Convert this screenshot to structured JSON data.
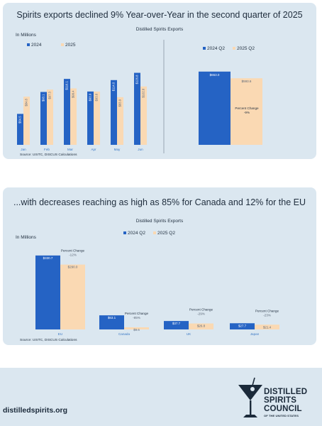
{
  "top": {
    "headline": "Spirits exports declined 9% Year-over-Year in the second quarter of 2025",
    "source": "Source: USITC, DISCUS Calculations"
  },
  "bottom": {
    "headline": "...with decreases reaching as high as 85% for Canada and 12% for the EU",
    "source": "Source: USITC, DISCUS Calculations"
  },
  "footer": {
    "url": "distilledspirits.org",
    "logo_lines": [
      "DISTILLED",
      "SPIRITS",
      "COUNCIL",
      "OF THE UNITED STATES"
    ]
  },
  "colors": {
    "series_2024": "#2563c4",
    "series_2025": "#fad9b3",
    "panel_bg": "#dbe7f0",
    "category_label": "#3a78c4",
    "text_dark": "#1f2d3d"
  },
  "chart_data": [
    {
      "type": "bar",
      "title": "Distilled Spirits Exports",
      "unit_label": "In Millions",
      "categories": [
        "Jan",
        "Feb",
        "Mar",
        "Apr",
        "May",
        "Jun"
      ],
      "series": [
        {
          "name": "2024",
          "values": [
            54.5,
            93.1,
            116.1,
            93.9,
            114.0,
            126.8
          ],
          "labels": [
            "$54.5",
            "$93.1",
            "$116.1",
            "$93.9",
            "$114.0",
            "$126.8"
          ]
        },
        {
          "name": "2025",
          "values": [
            84.8,
            97.3,
            99.4,
            93.8,
            83.9,
            102.8
          ],
          "labels": [
            "$84.8",
            "$97.3",
            "$99.4",
            "$93.8",
            "$83.9",
            "$102.8"
          ]
        }
      ],
      "ylim": [
        0,
        140
      ],
      "legend": "top-left"
    },
    {
      "type": "bar",
      "categories": [
        ""
      ],
      "series": [
        {
          "name": "2024 Q2",
          "values": [
            653.0
          ],
          "labels": [
            "$653.0"
          ]
        },
        {
          "name": "2025 Q2",
          "values": [
            593.6
          ],
          "labels": [
            "$593.6"
          ]
        }
      ],
      "annotation": {
        "label": "Percent Change",
        "value": "-9%"
      },
      "ylim": [
        0,
        760
      ],
      "legend": "top"
    },
    {
      "type": "bar",
      "title": "Distilled Spirits Exports",
      "unit_label": "In Millions",
      "categories": [
        "EU",
        "Canada",
        "UK",
        "Japan"
      ],
      "series": [
        {
          "name": "2024 Q2",
          "values": [
            330.7,
            63.1,
            37.7,
            27.7
          ],
          "labels": [
            "$330.7",
            "$63.1",
            "$37.7",
            "$27.7"
          ]
        },
        {
          "name": "2025 Q2",
          "values": [
            290.0,
            9.6,
            26.8,
            21.4
          ],
          "labels": [
            "$290.0",
            "$9.6",
            "$26.8",
            "$21.4"
          ]
        }
      ],
      "annotations": [
        {
          "category": "EU",
          "label": "Percent Change",
          "value": "-12%"
        },
        {
          "category": "Canada",
          "label": "Percent Change",
          "value": "-85%"
        },
        {
          "category": "UK",
          "label": "Percent Change",
          "value": "-29%"
        },
        {
          "category": "Japan",
          "label": "Percent Change",
          "value": "-23%"
        }
      ],
      "ylim": [
        0,
        380
      ],
      "legend": "top"
    }
  ]
}
